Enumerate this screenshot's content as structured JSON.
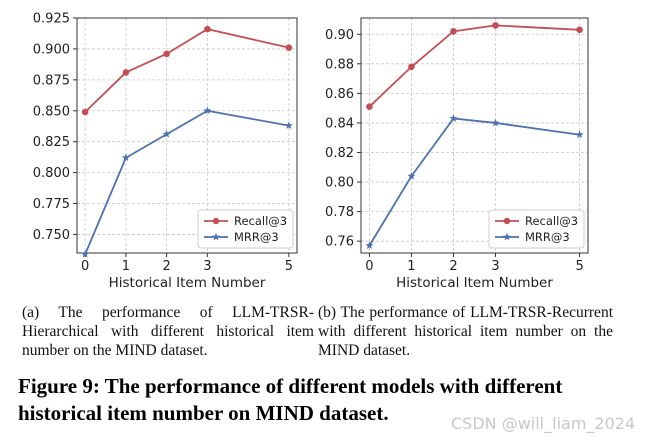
{
  "chart_data": [
    {
      "type": "line",
      "x": [
        0,
        1,
        2,
        3,
        5
      ],
      "xlabel": "Historical Item Number",
      "ylabel": "",
      "ylim": [
        0.735,
        0.925
      ],
      "yticks": [
        "0.750",
        "0.775",
        "0.800",
        "0.825",
        "0.850",
        "0.875",
        "0.900",
        "0.925"
      ],
      "ytick_values": [
        0.75,
        0.775,
        0.8,
        0.825,
        0.85,
        0.875,
        0.9,
        0.925
      ],
      "xtick_labels": [
        "0",
        "1",
        "2",
        "3",
        "5"
      ],
      "grid": true,
      "legend_position": "lower-right",
      "series": [
        {
          "name": "Recall@3",
          "values": [
            0.849,
            0.881,
            0.896,
            0.916,
            0.901
          ],
          "color": "#c44e52",
          "marker": "circle"
        },
        {
          "name": "MRR@3",
          "values": [
            0.734,
            0.812,
            0.831,
            0.85,
            0.838
          ],
          "color": "#4c72b0",
          "marker": "star"
        }
      ]
    },
    {
      "type": "line",
      "x": [
        0,
        1,
        2,
        3,
        5
      ],
      "xlabel": "Historical Item Number",
      "ylabel": "",
      "ylim": [
        0.752,
        0.911
      ],
      "yticks": [
        "0.76",
        "0.78",
        "0.80",
        "0.82",
        "0.84",
        "0.86",
        "0.88",
        "0.90"
      ],
      "ytick_values": [
        0.76,
        0.78,
        0.8,
        0.82,
        0.84,
        0.86,
        0.88,
        0.9
      ],
      "xtick_labels": [
        "0",
        "1",
        "2",
        "3",
        "5"
      ],
      "grid": true,
      "legend_position": "lower-right",
      "series": [
        {
          "name": "Recall@3",
          "values": [
            0.851,
            0.878,
            0.902,
            0.906,
            0.903
          ],
          "color": "#c44e52",
          "marker": "circle"
        },
        {
          "name": "MRR@3",
          "values": [
            0.757,
            0.804,
            0.843,
            0.84,
            0.832
          ],
          "color": "#4c72b0",
          "marker": "star"
        }
      ]
    }
  ],
  "captions": {
    "sub_a": "(a) The performance of LLM-TRSR-Hierarchical with different historical item number on the MIND dataset.",
    "sub_b": "(b) The performance of LLM-TRSR-Recurrent with different historical item number on the MIND dataset.",
    "figure": "Figure 9: The performance of different models with different historical item number on MIND dataset."
  },
  "watermark": "CSDN @will_liam_2024"
}
